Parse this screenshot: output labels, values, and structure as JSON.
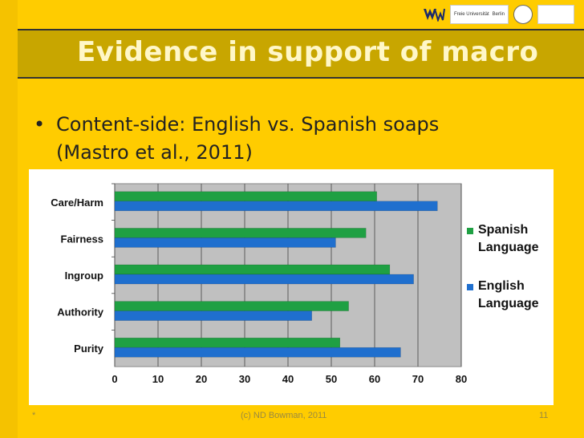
{
  "title": "Evidence in support of macro",
  "bullet": {
    "marker": "•",
    "line1": "Content-side: English vs. Spanish soaps",
    "line2": "(Mastro et al., 2011)"
  },
  "logos": {
    "university_text": "Freie Universität",
    "city_text": "Berlin"
  },
  "footer": {
    "star": "*",
    "credit": "(c) ND Bowman, 2011",
    "page": "11"
  },
  "chart_data": {
    "type": "bar",
    "orientation": "horizontal",
    "categories": [
      "Care/Harm",
      "Fairness",
      "Ingroup",
      "Authority",
      "Purity"
    ],
    "series": [
      {
        "name": "Spanish Language",
        "color": "#1FA043",
        "values": [
          60.5,
          58,
          63.5,
          54,
          52
        ]
      },
      {
        "name": "English Language",
        "color": "#1F6FCE",
        "values": [
          74.5,
          51,
          69,
          45.5,
          66
        ]
      }
    ],
    "xlim": [
      0,
      80
    ],
    "xticks": [
      0,
      10,
      20,
      30,
      40,
      50,
      60,
      70,
      80
    ],
    "grid": true,
    "plot_background": "#C0C0C0",
    "legend": "right"
  }
}
